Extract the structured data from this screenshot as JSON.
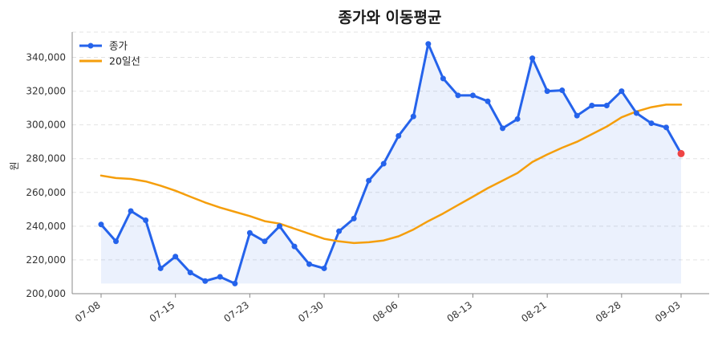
{
  "chart_data": {
    "type": "line",
    "title": "종가와 이동평균",
    "xlabel": "",
    "ylabel": "원",
    "ylim": [
      200000,
      355000
    ],
    "yticks": [
      200000,
      220000,
      240000,
      260000,
      280000,
      300000,
      320000,
      340000
    ],
    "ytick_labels": [
      "200,000",
      "220,000",
      "240,000",
      "260,000",
      "280,000",
      "300,000",
      "320,000",
      "340,000"
    ],
    "xtick_labels": [
      "07-08",
      "07-15",
      "07-23",
      "07-30",
      "08-06",
      "08-13",
      "08-21",
      "08-28",
      "09-03"
    ],
    "xtick_index": [
      0,
      5,
      10,
      15,
      20,
      25,
      30,
      35,
      39
    ],
    "grid": true,
    "legend_position": "top-left",
    "series": [
      {
        "name": "종가",
        "color": "#2563eb",
        "markers": true,
        "fill_below": true,
        "values": [
          241000,
          231000,
          249000,
          243500,
          215000,
          222000,
          212500,
          207500,
          210000,
          206000,
          236000,
          231000,
          240000,
          228000,
          217500,
          215000,
          237000,
          244500,
          267000,
          277000,
          293500,
          305000,
          348000,
          327500,
          317500,
          317500,
          314000,
          298000,
          303500,
          339500,
          320000,
          320500,
          305500,
          311500,
          311500,
          320000,
          307000,
          301000,
          298500,
          283000
        ]
      },
      {
        "name": "20일선",
        "color": "#f59e0b",
        "markers": false,
        "fill_below": false,
        "values": [
          270000,
          268500,
          268000,
          266500,
          264000,
          261000,
          257500,
          254000,
          251000,
          248500,
          246000,
          243000,
          241500,
          238500,
          235500,
          232500,
          231000,
          230000,
          230500,
          231500,
          234000,
          238000,
          243000,
          247500,
          252500,
          257500,
          262500,
          267000,
          271500,
          278000,
          282500,
          286500,
          290000,
          294500,
          299000,
          304500,
          308000,
          310500,
          312000,
          312000
        ]
      }
    ],
    "last_point_color": "#ef4444"
  }
}
